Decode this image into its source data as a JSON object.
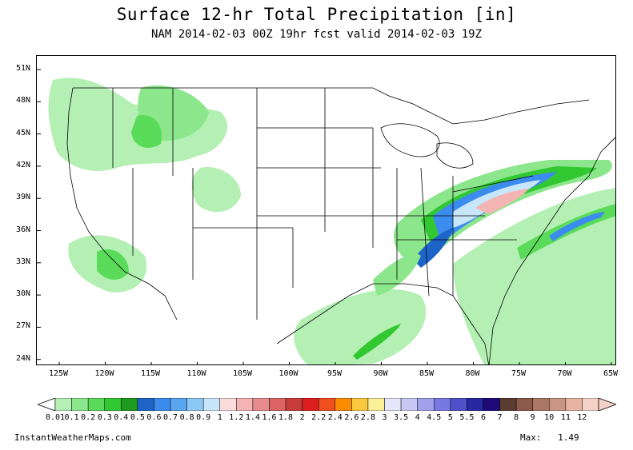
{
  "header": {
    "title": "Surface 12-hr Total Precipitation [in]",
    "subtitle": "NAM 2014-02-03 00Z 19hr fcst valid 2014-02-03 19Z"
  },
  "map": {
    "lat_labels": [
      "51N",
      "48N",
      "45N",
      "42N",
      "39N",
      "36N",
      "33N",
      "30N",
      "27N",
      "24N"
    ],
    "lon_labels": [
      "125W",
      "120W",
      "115W",
      "110W",
      "105W",
      "100W",
      "95W",
      "90W",
      "85W",
      "80W",
      "75W",
      "70W",
      "65W"
    ]
  },
  "legend": {
    "labels": [
      "0.01",
      "0.1",
      "0.2",
      "0.3",
      "0.4",
      "0.5",
      "0.6",
      "0.7",
      "0.8",
      "0.9",
      "1",
      "1.2",
      "1.4",
      "1.6",
      "1.8",
      "2",
      "2.2",
      "2.4",
      "2.6",
      "2.8",
      "3",
      "3.5",
      "4",
      "4.5",
      "5",
      "5.5",
      "6",
      "7",
      "8",
      "9",
      "10",
      "11",
      "12"
    ],
    "colors": [
      "#b4f0b4",
      "#8ce68c",
      "#5adc5a",
      "#32c832",
      "#1e9b1e",
      "#1e64c8",
      "#3c8cf0",
      "#5aa5f0",
      "#8cc8f5",
      "#c8e6fa",
      "#fadcdc",
      "#f5b4b4",
      "#e68c8c",
      "#dc6464",
      "#c83c3c",
      "#dc1e1e",
      "#f0501e",
      "#fa8c00",
      "#fac83c",
      "#faf096",
      "#e6e6fa",
      "#c8c8f5",
      "#a0a0eb",
      "#7878e1",
      "#5050c8",
      "#2828a0",
      "#1e0a78",
      "#5a3c32",
      "#8c5a4b",
      "#aa7864",
      "#c89682",
      "#e6b4a0",
      "#f5d2c8"
    ]
  },
  "footer": {
    "site": "InstantWeatherMaps.com",
    "max_label": "Max:",
    "max_value": "1.49"
  }
}
